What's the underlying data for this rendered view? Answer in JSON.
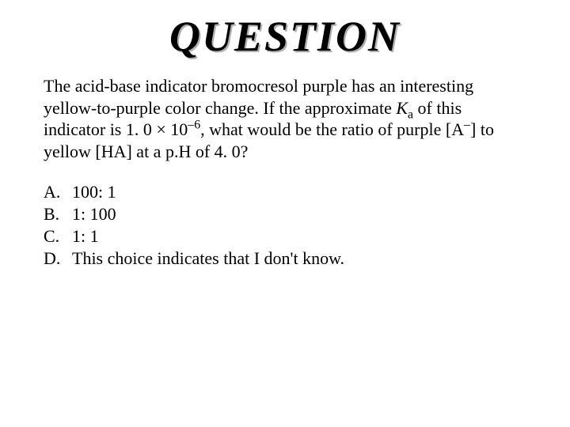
{
  "title": "QUESTION",
  "question": {
    "prefix": "The acid-base indicator bromocresol purple has an interesting yellow-to-purple color change.  If the approximate ",
    "ka_symbol": "K",
    "ka_sub": "a",
    "mid1": " of this indicator is 1. 0 ",
    "times": "×",
    "mid2": " 10",
    "exp": "–6",
    "mid3": ", what would be the ratio of purple [A",
    "a_sup": "–",
    "mid4": "] to yellow [HA] at a p.H of 4. 0?"
  },
  "choices": [
    {
      "letter": "A.",
      "text": "100: 1"
    },
    {
      "letter": "B.",
      "text": "1: 100"
    },
    {
      "letter": "C.",
      "text": "1: 1"
    },
    {
      "letter": "D.",
      "text": "This choice indicates that I don't know."
    }
  ],
  "style": {
    "background_color": "#ffffff",
    "text_color": "#000000",
    "shadow_color": "#b0b0b0",
    "title_fontsize": 54,
    "body_fontsize": 22,
    "font_family": "Times New Roman"
  }
}
